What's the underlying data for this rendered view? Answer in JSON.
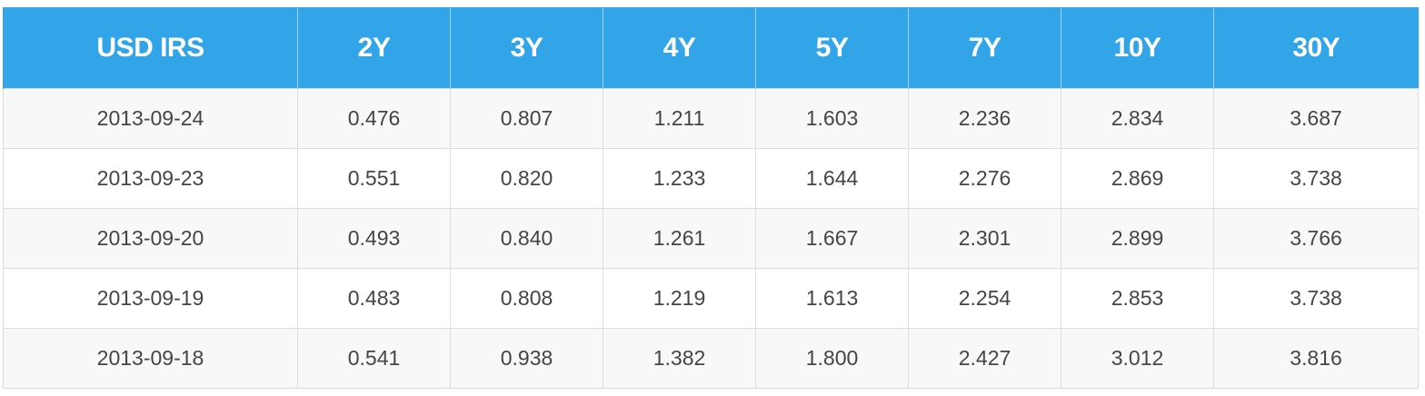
{
  "chart_data": {
    "type": "table",
    "title": "",
    "columns": [
      "USD IRS",
      "2Y",
      "3Y",
      "4Y",
      "5Y",
      "7Y",
      "10Y",
      "30Y"
    ],
    "rows": [
      [
        "2013-09-24",
        "0.476",
        "0.807",
        "1.211",
        "1.603",
        "2.236",
        "2.834",
        "3.687"
      ],
      [
        "2013-09-23",
        "0.551",
        "0.820",
        "1.233",
        "1.644",
        "2.276",
        "2.869",
        "3.738"
      ],
      [
        "2013-09-20",
        "0.493",
        "0.840",
        "1.261",
        "1.667",
        "2.301",
        "2.899",
        "3.766"
      ],
      [
        "2013-09-19",
        "0.483",
        "0.808",
        "1.219",
        "1.613",
        "2.254",
        "2.853",
        "3.738"
      ],
      [
        "2013-09-18",
        "0.541",
        "0.938",
        "1.382",
        "1.800",
        "2.427",
        "3.012",
        "3.816"
      ]
    ]
  },
  "colors": {
    "header_background": "#31a5e7",
    "header_text": "#ffffff",
    "body_text": "#454545",
    "stripe": "#f8f8f8",
    "border": "#dddddd"
  }
}
